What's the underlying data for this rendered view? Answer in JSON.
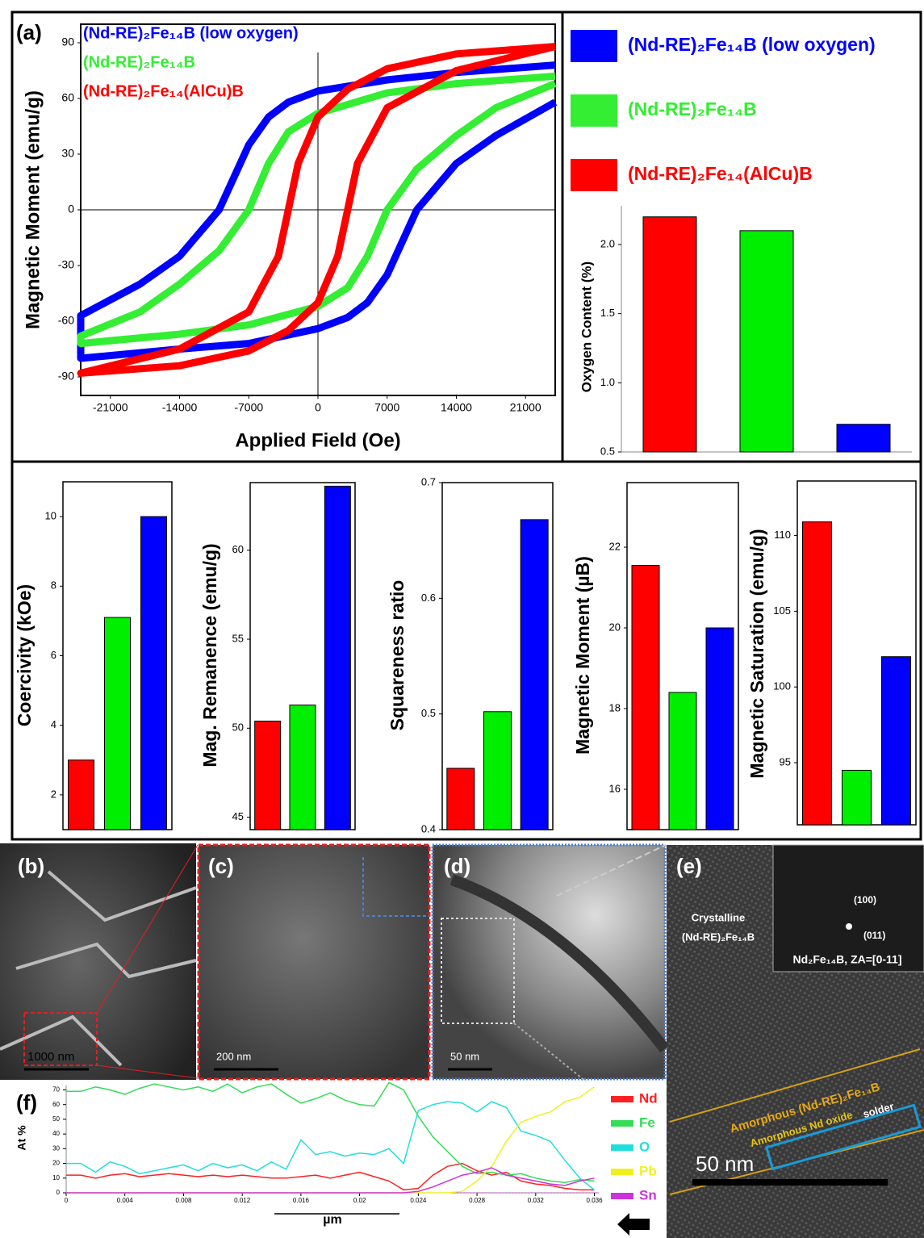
{
  "chart_data": [
    {
      "type": "loop",
      "label": "(a)",
      "xlabel": "Applied Field (Oe)",
      "ylabel": "Magnetic Moment (emu/g)",
      "xlim": [
        -24000,
        24000
      ],
      "ylim": [
        -100,
        100
      ],
      "xticks": [
        -21000,
        -14000,
        -7000,
        0,
        7000,
        14000,
        21000
      ],
      "yticks": [
        -90,
        -60,
        -30,
        0,
        30,
        60,
        90
      ],
      "series": [
        {
          "name": "(Nd-RE)₂Fe₁₄B (low oxygen)",
          "color": "#0000ff",
          "x": [
            24000,
            14000,
            7000,
            0,
            -3000,
            -5000,
            -7000,
            -10000,
            -14000,
            -18000,
            -24000,
            -24000,
            -14000,
            -7000,
            0,
            3000,
            5000,
            7000,
            10000,
            14000,
            18000,
            24000
          ],
          "values": [
            78,
            74,
            70,
            64,
            58,
            50,
            35,
            0,
            -25,
            -40,
            -57,
            -80,
            -75,
            -72,
            -64,
            -58,
            -50,
            -35,
            0,
            25,
            40,
            58
          ]
        },
        {
          "name": "(Nd-RE)₂Fe₁₄B",
          "color": "#33ee33",
          "x": [
            24000,
            14000,
            7000,
            0,
            -3000,
            -5000,
            -7000,
            -10000,
            -14000,
            -18000,
            -24000,
            -24000,
            -14000,
            -7000,
            0,
            3000,
            5000,
            7000,
            10000,
            14000,
            18000,
            24000
          ],
          "values": [
            72,
            68,
            63,
            52,
            42,
            25,
            0,
            -22,
            -40,
            -55,
            -68,
            -72,
            -67,
            -62,
            -52,
            -42,
            -25,
            0,
            22,
            40,
            55,
            68
          ]
        },
        {
          "name": "(Nd-RE)₂Fe₁₄(AlCu)B",
          "color": "#ff0000",
          "x": [
            24000,
            14000,
            7000,
            3000,
            0,
            -2000,
            -3000,
            -4000,
            -7000,
            -14000,
            -24000,
            -24000,
            -14000,
            -7000,
            -3000,
            0,
            2000,
            3000,
            4000,
            7000,
            14000,
            24000
          ],
          "values": [
            88,
            84,
            76,
            65,
            50,
            25,
            0,
            -25,
            -55,
            -75,
            -88,
            -88,
            -84,
            -76,
            -65,
            -50,
            -25,
            0,
            25,
            55,
            75,
            88
          ]
        }
      ]
    },
    {
      "type": "bar",
      "ylabel": "Oxygen Content (%)",
      "categories": [
        null,
        null,
        null
      ],
      "values": [
        2.2,
        2.1,
        0.7
      ],
      "colors": [
        "#ff0000",
        "#00ee00",
        "#0000ff"
      ],
      "ylim": [
        0.5,
        2.28
      ],
      "yticks": [
        0.5,
        {
          "value": 1,
          "label": "1.0"
        },
        1.5,
        {
          "value": 2,
          "label": "2.0"
        }
      ]
    },
    {
      "type": "bar",
      "ylabel": "Coercivity (kOe)",
      "categories": [
        null,
        null,
        null
      ],
      "values": [
        3.0,
        7.1,
        10.0
      ],
      "colors": [
        "#ff0000",
        "#00ee00",
        "#0000ff"
      ],
      "ylim": [
        1,
        11
      ],
      "yticks": [
        2,
        4,
        6,
        8,
        10
      ]
    },
    {
      "type": "bar",
      "ylabel": "Mag. Remanence (emu/g)",
      "categories": [
        null,
        null,
        null
      ],
      "values": [
        50.4,
        51.3,
        63.6
      ],
      "colors": [
        "#ff0000",
        "#00ee00",
        "#0000ff"
      ],
      "ylim": [
        44.3,
        63.8
      ],
      "yticks": [
        45,
        50,
        55,
        60
      ]
    },
    {
      "type": "bar",
      "ylabel": "Squareness ratio",
      "categories": [
        null,
        null,
        null
      ],
      "values": [
        0.453,
        0.502,
        0.668
      ],
      "colors": [
        "#ff0000",
        "#00ee00",
        "#0000ff"
      ],
      "ylim": [
        0.4,
        0.7
      ],
      "yticks": [
        0.4,
        0.5,
        0.6,
        0.7
      ]
    },
    {
      "type": "bar",
      "ylabel": "Magnetic Moment (µB)",
      "categories": [
        null,
        null,
        null
      ],
      "values": [
        21.55,
        18.4,
        20.0
      ],
      "colors": [
        "#ff0000",
        "#00ee00",
        "#0000ff"
      ],
      "ylim": [
        15,
        23.6
      ],
      "yticks": [
        16,
        18,
        20,
        22
      ]
    },
    {
      "type": "bar",
      "ylabel": "Magnetic Saturation (emu/g)",
      "categories": [
        null,
        null,
        null
      ],
      "values": [
        110.9,
        94.5,
        102
      ],
      "colors": [
        "#ff0000",
        "#00ee00",
        "#0000ff"
      ],
      "ylim": [
        90.9,
        113.6
      ],
      "yticks": [
        95,
        100,
        105,
        110
      ]
    },
    {
      "type": "line",
      "label": "(f)",
      "xlabel": "µm",
      "ylabel": "At %",
      "xlim": [
        0,
        0.0363
      ],
      "ylim": [
        0,
        73
      ],
      "xticks": [
        0,
        0.004,
        0.008,
        0.012,
        0.016,
        0.02,
        0.024,
        0.028,
        0.032,
        0.036
      ],
      "yticks": [
        0,
        10,
        20,
        30,
        40,
        50,
        60,
        70
      ],
      "x": [
        0,
        0.001,
        0.002,
        0.003,
        0.004,
        0.005,
        0.006,
        0.007,
        0.008,
        0.009,
        0.01,
        0.011,
        0.012,
        0.013,
        0.014,
        0.015,
        0.016,
        0.017,
        0.018,
        0.019,
        0.02,
        0.021,
        0.022,
        0.023,
        0.024,
        0.025,
        0.026,
        0.027,
        0.028,
        0.029,
        0.03,
        0.031,
        0.032,
        0.033,
        0.034,
        0.035,
        0.036
      ],
      "series": [
        {
          "name": "Nd",
          "color": "#ff2020",
          "values": [
            12,
            12,
            10,
            12,
            13,
            11,
            12,
            13,
            12,
            11,
            12,
            11,
            12,
            11,
            10,
            10,
            11,
            12,
            10,
            12,
            14,
            11,
            8,
            2,
            3,
            12,
            18,
            20,
            15,
            12,
            14,
            8,
            6,
            5,
            3,
            2,
            2
          ]
        },
        {
          "name": "Fe",
          "color": "#33dd55",
          "values": [
            69,
            69,
            72,
            70,
            67,
            71,
            74,
            72,
            70,
            72,
            69,
            74,
            68,
            72,
            74,
            67,
            61,
            64,
            68,
            63,
            60,
            59,
            75,
            70,
            52,
            38,
            28,
            18,
            13,
            14,
            12,
            13,
            10,
            8,
            7,
            9,
            8
          ]
        },
        {
          "name": "O",
          "color": "#22dddd",
          "values": [
            20,
            20,
            14,
            21,
            18,
            13,
            15,
            17,
            19,
            15,
            20,
            17,
            19,
            15,
            21,
            16,
            36,
            26,
            28,
            25,
            27,
            26,
            30,
            20,
            56,
            60,
            62,
            61,
            55,
            62,
            58,
            42,
            39,
            35,
            22,
            10,
            2
          ]
        },
        {
          "name": "Pb",
          "color": "#f0f020",
          "values": [
            0,
            0,
            0,
            0,
            0,
            0,
            0,
            0,
            0,
            0,
            0,
            0,
            0,
            0,
            0,
            0,
            0,
            0,
            0,
            0,
            0,
            0,
            0,
            0,
            0,
            0,
            0,
            1,
            8,
            18,
            35,
            48,
            52,
            55,
            62,
            65,
            72
          ]
        },
        {
          "name": "Sn",
          "color": "#cc33dd",
          "values": [
            0,
            0,
            0,
            0,
            0,
            0,
            0,
            0,
            0,
            0,
            0,
            0,
            0,
            0,
            0,
            0,
            0,
            0,
            0,
            0,
            0,
            0,
            0,
            0,
            1,
            4,
            8,
            12,
            14,
            17,
            12,
            10,
            8,
            6,
            5,
            8,
            10
          ]
        }
      ]
    }
  ],
  "images": {
    "b": {
      "label": "(b)",
      "scale": "1000 nm"
    },
    "c": {
      "label": "(c)",
      "scale": "200 nm"
    },
    "d": {
      "label": "(d)",
      "scale": "50 nm"
    },
    "e": {
      "label": "(e)",
      "crystalline": "Crystalline",
      "phase": "(Nd-RE)₂Fe₁₄B",
      "plane1": "(100)",
      "plane2": "(011)",
      "zone": "Nd₂Fe₁₄B, ZA=[0-11]",
      "amorphous1": "Amorphous (Nd-RE)₂Fe₁₄B",
      "amorphous2": "Amorphous Nd oxide",
      "solder": "solder",
      "scale": "50 nm"
    }
  }
}
